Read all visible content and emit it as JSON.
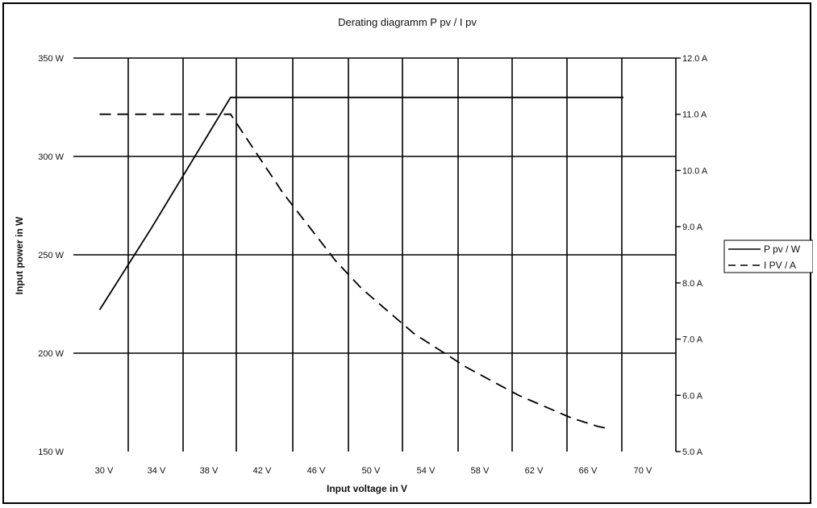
{
  "chart_data": {
    "type": "line",
    "title": "Derating diagramm P pv / I pv",
    "xlabel": "Input voltage in V",
    "ylabel_left": "Input power in W",
    "ylabel_right": "",
    "x": [
      30,
      34,
      38,
      42,
      46,
      50,
      54,
      58,
      62,
      66,
      70
    ],
    "x_tick_labels": [
      "30 V",
      "34 V",
      "38 V",
      "42 V",
      "46 V",
      "50 V",
      "54 V",
      "58 V",
      "62 V",
      "66 V",
      "70 V"
    ],
    "ylim_left": [
      150,
      350
    ],
    "ylim_right": [
      5,
      12
    ],
    "y_left_tick_values": [
      150,
      200,
      250,
      300,
      350
    ],
    "y_left_tick_labels": [
      "150 W",
      "200 W",
      "250 W",
      "300 W",
      "350 W"
    ],
    "y_right_tick_values": [
      5,
      6,
      7,
      8,
      9,
      10,
      11,
      12
    ],
    "y_right_tick_labels": [
      "5.0 A",
      "6.0 A",
      "7.0 A",
      "8.0 A",
      "9.0 A",
      "10.0 A",
      "11.0 A",
      "12.0 A"
    ],
    "grid": "on",
    "legend_position": "right",
    "series": [
      {
        "name": "P pv / W",
        "axis": "left",
        "style": "solid",
        "color": "#000000",
        "x": [
          28,
          32,
          38,
          42,
          46,
          50,
          54,
          58,
          62,
          66,
          68
        ],
        "values": [
          222,
          264,
          330,
          330,
          330,
          330,
          330,
          330,
          330,
          330,
          330
        ]
      },
      {
        "name": "I PV / A",
        "axis": "right",
        "style": "dashed",
        "color": "#000000",
        "x": [
          28,
          30,
          32,
          34,
          36,
          38,
          40,
          42,
          44,
          46,
          48,
          50,
          52,
          54,
          56,
          58,
          60,
          62,
          64,
          66,
          67
        ],
        "values": [
          11.0,
          11.0,
          11.0,
          11.0,
          11.0,
          11.0,
          10.3,
          9.6,
          9.0,
          8.4,
          7.9,
          7.5,
          7.1,
          6.8,
          6.5,
          6.25,
          6.0,
          5.8,
          5.6,
          5.45,
          5.4
        ]
      }
    ]
  }
}
